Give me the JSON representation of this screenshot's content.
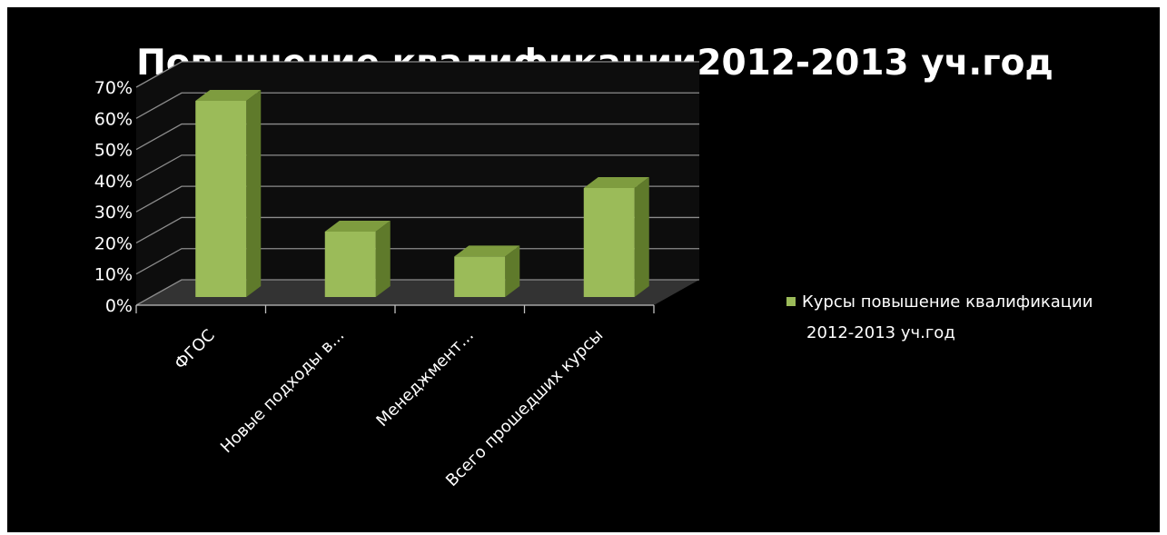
{
  "chart_data": {
    "type": "bar",
    "title": "Повышение квалификации2012-2013 уч.год",
    "categories": [
      "ФГОС",
      "Новые подходы в...",
      "Менеджмент...",
      "Всего прошедших курсы"
    ],
    "series": [
      {
        "name": "Курсы повышение квалификации 2012-2013 уч.год",
        "values": [
          0.63,
          0.21,
          0.13,
          0.35
        ]
      }
    ],
    "y_ticks": [
      "0%",
      "10%",
      "20%",
      "30%",
      "40%",
      "50%",
      "60%",
      "70%"
    ],
    "ylim": [
      0,
      0.7
    ],
    "grid": true,
    "three_d": true,
    "legend_position": "right",
    "colors": {
      "background": "#000000",
      "bar": "#9BBB59",
      "bar_side": "#5F7A2B",
      "bar_top": "#7E9C3F",
      "grid": "#8c8c8c",
      "wall": "#0d0d0d",
      "floor": "#333333",
      "text": "#ffffff"
    }
  }
}
